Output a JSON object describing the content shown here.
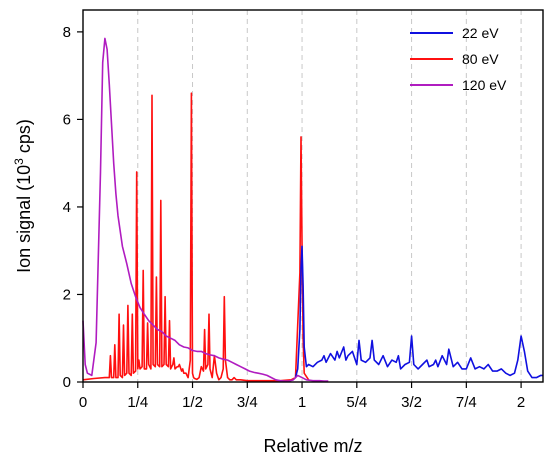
{
  "chart_data": {
    "type": "line",
    "title": "",
    "xlabel": "Relative m/z",
    "ylabel_main": "Ion signal (10",
    "ylabel_sup": "3",
    "ylabel_tail": " cps)",
    "xlim": [
      0,
      2.1
    ],
    "ylim": [
      0,
      8.5
    ],
    "x_ticks": [
      {
        "v": 0,
        "label": "0"
      },
      {
        "v": 0.25,
        "label": "1/4"
      },
      {
        "v": 0.5,
        "label": "1/2"
      },
      {
        "v": 0.75,
        "label": "3/4"
      },
      {
        "v": 1.0,
        "label": "1"
      },
      {
        "v": 1.25,
        "label": "5/4"
      },
      {
        "v": 1.5,
        "label": "3/2"
      },
      {
        "v": 1.75,
        "label": "7/4"
      },
      {
        "v": 2.0,
        "label": "2"
      }
    ],
    "y_ticks": [
      {
        "v": 0,
        "label": "0"
      },
      {
        "v": 2,
        "label": "2"
      },
      {
        "v": 4,
        "label": "4"
      },
      {
        "v": 6,
        "label": "6"
      },
      {
        "v": 8,
        "label": "8"
      }
    ],
    "vertical_dashed_gridlines_at": [
      0.25,
      0.5,
      0.75,
      1.0,
      1.25,
      1.5,
      1.75,
      2.0
    ],
    "legend_position": "top-right",
    "series": [
      {
        "name": "22 eV",
        "color": "#1010e0",
        "x": [
          0.97,
          0.98,
          0.99,
          0.995,
          1.0,
          1.005,
          1.01,
          1.02,
          1.03,
          1.05,
          1.07,
          1.09,
          1.1,
          1.11,
          1.13,
          1.15,
          1.16,
          1.17,
          1.19,
          1.2,
          1.21,
          1.23,
          1.25,
          1.26,
          1.27,
          1.29,
          1.31,
          1.32,
          1.33,
          1.35,
          1.37,
          1.39,
          1.41,
          1.43,
          1.44,
          1.45,
          1.47,
          1.49,
          1.5,
          1.51,
          1.53,
          1.55,
          1.57,
          1.58,
          1.6,
          1.61,
          1.62,
          1.64,
          1.66,
          1.67,
          1.69,
          1.71,
          1.73,
          1.75,
          1.77,
          1.79,
          1.81,
          1.83,
          1.85,
          1.87,
          1.89,
          1.91,
          1.93,
          1.95,
          1.97,
          1.985,
          2.0,
          2.015,
          2.03,
          2.05,
          2.07,
          2.09,
          2.1
        ],
        "y": [
          0.1,
          0.3,
          1.2,
          2.6,
          3.1,
          2.2,
          0.8,
          0.35,
          0.4,
          0.35,
          0.45,
          0.5,
          0.6,
          0.45,
          0.65,
          0.5,
          0.7,
          0.55,
          0.8,
          0.5,
          0.6,
          0.7,
          0.4,
          0.95,
          0.5,
          0.45,
          0.55,
          0.95,
          0.5,
          0.4,
          0.6,
          0.35,
          0.5,
          0.45,
          0.6,
          0.3,
          0.4,
          0.45,
          1.05,
          0.4,
          0.3,
          0.4,
          0.5,
          0.35,
          0.4,
          0.5,
          0.35,
          0.6,
          0.4,
          0.75,
          0.35,
          0.45,
          0.3,
          0.3,
          0.55,
          0.3,
          0.35,
          0.3,
          0.4,
          0.25,
          0.25,
          0.3,
          0.2,
          0.15,
          0.2,
          0.5,
          1.05,
          0.7,
          0.25,
          0.1,
          0.1,
          0.15,
          0.15
        ]
      },
      {
        "name": "80 eV",
        "color": "#ff1010",
        "x": [
          0,
          0.05,
          0.1,
          0.12,
          0.125,
          0.13,
          0.14,
          0.145,
          0.15,
          0.16,
          0.165,
          0.17,
          0.18,
          0.185,
          0.19,
          0.2,
          0.205,
          0.21,
          0.22,
          0.225,
          0.23,
          0.24,
          0.245,
          0.25,
          0.255,
          0.26,
          0.27,
          0.275,
          0.28,
          0.29,
          0.295,
          0.3,
          0.31,
          0.315,
          0.32,
          0.33,
          0.335,
          0.34,
          0.35,
          0.355,
          0.36,
          0.37,
          0.375,
          0.38,
          0.39,
          0.395,
          0.4,
          0.41,
          0.415,
          0.42,
          0.43,
          0.435,
          0.44,
          0.45,
          0.455,
          0.46,
          0.47,
          0.475,
          0.48,
          0.49,
          0.495,
          0.5,
          0.505,
          0.51,
          0.52,
          0.53,
          0.54,
          0.55,
          0.555,
          0.56,
          0.57,
          0.575,
          0.58,
          0.59,
          0.6,
          0.61,
          0.62,
          0.63,
          0.64,
          0.645,
          0.65,
          0.66,
          0.67,
          0.68,
          0.69,
          0.7,
          0.72,
          0.75,
          0.8,
          0.85,
          0.9,
          0.95,
          0.97,
          0.99,
          0.995,
          1.0,
          1.005,
          1.01,
          1.03
        ],
        "y": [
          0.05,
          0.08,
          0.1,
          0.1,
          0.6,
          0.1,
          0.1,
          0.85,
          0.1,
          0.1,
          1.55,
          0.15,
          0.1,
          1.3,
          0.15,
          0.2,
          1.75,
          0.2,
          0.15,
          1.55,
          0.2,
          0.25,
          4.8,
          0.3,
          0.5,
          0.3,
          0.35,
          2.55,
          0.3,
          0.3,
          1.35,
          0.4,
          0.3,
          6.55,
          0.4,
          0.35,
          2.4,
          0.4,
          0.35,
          4.15,
          0.35,
          0.4,
          1.95,
          0.4,
          0.35,
          1.4,
          0.3,
          0.4,
          0.55,
          0.3,
          0.35,
          0.35,
          0.4,
          0.25,
          0.3,
          0.2,
          0.2,
          0.15,
          0.1,
          0.5,
          6.6,
          0.2,
          0.1,
          0.08,
          0.06,
          0.1,
          0.35,
          0.25,
          1.2,
          0.3,
          0.4,
          1.55,
          0.3,
          0.1,
          0.6,
          0.2,
          0.05,
          0.1,
          0.3,
          1.95,
          0.5,
          0.1,
          0.05,
          0.05,
          0.1,
          0.05,
          0.05,
          0.03,
          0.03,
          0.03,
          0.03,
          0.05,
          0.1,
          2.5,
          5.6,
          3.2,
          1.0,
          0.2,
          0.05
        ]
      },
      {
        "name": "120 eV",
        "color": "#b01cc0",
        "x": [
          0,
          0.005,
          0.01,
          0.02,
          0.04,
          0.06,
          0.08,
          0.09,
          0.1,
          0.11,
          0.12,
          0.13,
          0.14,
          0.15,
          0.16,
          0.18,
          0.2,
          0.22,
          0.24,
          0.26,
          0.28,
          0.3,
          0.32,
          0.34,
          0.36,
          0.38,
          0.4,
          0.42,
          0.44,
          0.46,
          0.48,
          0.5,
          0.52,
          0.54,
          0.56,
          0.58,
          0.6,
          0.62,
          0.64,
          0.66,
          0.68,
          0.7,
          0.72,
          0.74,
          0.76,
          0.78,
          0.8,
          0.82,
          0.84,
          0.86,
          0.88,
          0.9,
          0.92,
          0.94,
          0.96,
          0.98,
          1.0,
          1.02,
          1.05,
          1.08,
          1.1,
          1.12
        ],
        "y": [
          1.4,
          0.9,
          0.4,
          0.2,
          0.15,
          0.9,
          4.8,
          7.3,
          7.85,
          7.6,
          6.8,
          5.9,
          5.0,
          4.3,
          3.8,
          3.1,
          2.7,
          2.25,
          1.95,
          1.7,
          1.55,
          1.4,
          1.3,
          1.2,
          1.15,
          1.05,
          1.0,
          0.95,
          0.85,
          0.8,
          0.78,
          0.72,
          0.7,
          0.7,
          0.65,
          0.62,
          0.6,
          0.55,
          0.52,
          0.5,
          0.45,
          0.4,
          0.35,
          0.3,
          0.25,
          0.22,
          0.2,
          0.18,
          0.15,
          0.1,
          0.05,
          0.03,
          0.02,
          0.02,
          0.05,
          0.15,
          0.1,
          0.05,
          0.03,
          0.03,
          0.02,
          0.02
        ]
      }
    ]
  }
}
